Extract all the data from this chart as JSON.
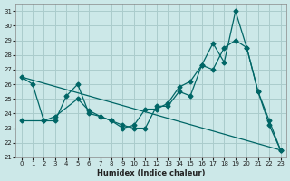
{
  "xlabel": "Humidex (Indice chaleur)",
  "background_color": "#cce8e8",
  "grid_color": "#aacccc",
  "line_color": "#006666",
  "xlim": [
    -0.5,
    23.5
  ],
  "ylim": [
    21,
    31.5
  ],
  "yticks": [
    21,
    22,
    23,
    24,
    25,
    26,
    27,
    28,
    29,
    30,
    31
  ],
  "xticks": [
    0,
    1,
    2,
    3,
    4,
    5,
    6,
    7,
    8,
    9,
    10,
    11,
    12,
    13,
    14,
    15,
    16,
    17,
    18,
    19,
    20,
    21,
    22,
    23
  ],
  "series1": {
    "x": [
      0,
      1,
      2,
      3,
      4,
      5,
      6,
      7,
      8,
      9,
      10,
      11,
      12,
      13,
      14,
      15,
      16,
      17,
      18,
      19,
      20,
      21,
      22,
      23
    ],
    "y": [
      26.5,
      26.0,
      23.5,
      23.5,
      25.2,
      26.0,
      24.0,
      23.8,
      23.5,
      23.2,
      23.0,
      23.0,
      24.5,
      24.5,
      25.5,
      25.2,
      27.3,
      28.8,
      27.5,
      31.0,
      28.5,
      25.5,
      23.5,
      21.5
    ]
  },
  "series2": {
    "x": [
      0,
      23
    ],
    "y": [
      26.5,
      21.5
    ]
  },
  "series3": {
    "x": [
      0,
      2,
      3,
      5,
      6,
      7,
      8,
      9,
      10,
      11,
      12,
      13,
      14,
      15,
      16,
      17,
      18,
      19,
      20,
      21,
      22,
      23
    ],
    "y": [
      23.5,
      23.5,
      23.8,
      25.0,
      24.2,
      23.8,
      23.5,
      23.0,
      23.2,
      24.3,
      24.3,
      24.7,
      25.8,
      26.2,
      27.3,
      27.0,
      28.5,
      29.0,
      28.5,
      25.5,
      23.2,
      21.5
    ]
  }
}
